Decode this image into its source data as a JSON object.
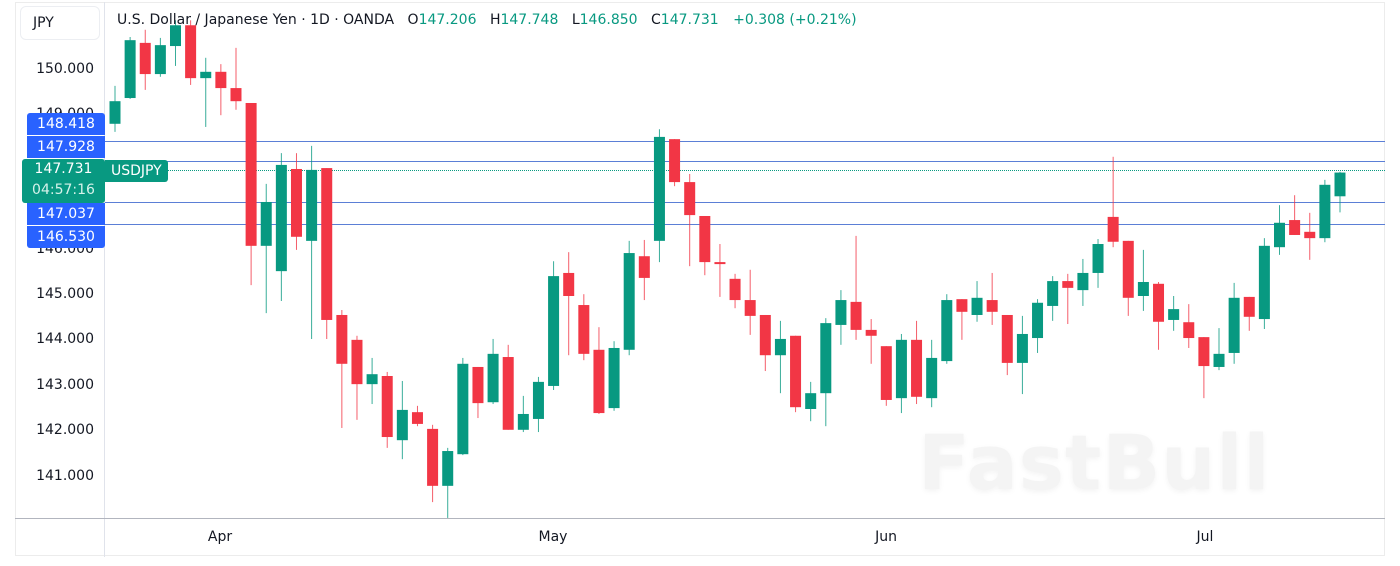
{
  "header": {
    "currency": "JPY",
    "title": "U.S. Dollar / Japanese Yen · 1D · OANDA",
    "ohlc": {
      "o_label": "O",
      "o": "147.206",
      "h_label": "H",
      "h": "147.748",
      "l_label": "L",
      "l": "146.850",
      "c_label": "C",
      "c": "147.731",
      "change": "+0.308 (+0.21%)"
    }
  },
  "price_axis": {
    "ticks": [
      "150.000",
      "149.000",
      "146.000",
      "145.000",
      "144.000",
      "143.000",
      "142.000",
      "141.000"
    ],
    "levels": [
      "148.418",
      "147.928",
      "147.037",
      "146.530"
    ],
    "current_price": "147.731",
    "countdown": "04:57:16",
    "symbol": "USDJPY"
  },
  "time_axis": {
    "labels": [
      "Apr",
      "May",
      "Jun",
      "Jul"
    ]
  },
  "watermark": "FastBull",
  "colors": {
    "up": "#089981",
    "down": "#f23645",
    "level_line": "#5b7fd6",
    "level_label": "#2962ff",
    "current": "#089981"
  },
  "chart_data": {
    "type": "candlestick",
    "title": "U.S. Dollar / Japanese Yen · 1D · OANDA",
    "symbol": "USDJPY",
    "xlabel": "",
    "ylabel": "JPY",
    "ylim": [
      140.1,
      151.1
    ],
    "grid": false,
    "x_tick_labels": [
      "Apr",
      "May",
      "Jun",
      "Jul"
    ],
    "y_tick_labels": [
      "141.000",
      "142.000",
      "143.000",
      "144.000",
      "145.000",
      "146.000",
      "149.000",
      "150.000"
    ],
    "horizontal_levels": [
      148.418,
      147.928,
      147.037,
      146.53
    ],
    "last_price": 147.731,
    "candles": [
      [
        148.81,
        149.65,
        148.63,
        149.31
      ],
      [
        149.38,
        150.73,
        149.36,
        150.66
      ],
      [
        150.6,
        150.89,
        149.56,
        149.91
      ],
      [
        149.91,
        150.71,
        149.85,
        150.55
      ],
      [
        150.53,
        151.1,
        150.09,
        150.99
      ],
      [
        150.99,
        151.1,
        149.67,
        149.82
      ],
      [
        149.82,
        150.27,
        148.74,
        149.96
      ],
      [
        149.96,
        150.13,
        149.0,
        149.6
      ],
      [
        149.6,
        150.49,
        149.12,
        149.31
      ],
      [
        149.27,
        149.27,
        145.24,
        146.11
      ],
      [
        146.11,
        147.48,
        144.62,
        147.08
      ],
      [
        145.55,
        148.16,
        144.89,
        147.9
      ],
      [
        147.81,
        148.16,
        146.02,
        146.31
      ],
      [
        146.22,
        148.32,
        144.05,
        147.79
      ],
      [
        147.83,
        147.83,
        144.05,
        144.47
      ],
      [
        144.58,
        144.69,
        142.08,
        143.5
      ],
      [
        144.03,
        144.12,
        142.26,
        143.05
      ],
      [
        143.05,
        143.63,
        142.61,
        143.27
      ],
      [
        143.23,
        143.32,
        141.64,
        141.88
      ],
      [
        141.81,
        143.12,
        141.39,
        142.48
      ],
      [
        142.43,
        142.57,
        142.12,
        142.17
      ],
      [
        142.06,
        142.15,
        140.44,
        140.8
      ],
      [
        140.8,
        141.64,
        140.09,
        141.57
      ],
      [
        141.5,
        143.63,
        141.48,
        143.5
      ],
      [
        143.43,
        143.43,
        142.3,
        142.63
      ],
      [
        142.65,
        144.05,
        142.61,
        143.72
      ],
      [
        143.65,
        143.92,
        142.04,
        142.04
      ],
      [
        142.04,
        142.79,
        141.99,
        142.39
      ],
      [
        142.28,
        143.21,
        141.99,
        143.1
      ],
      [
        143.01,
        145.77,
        142.92,
        145.44
      ],
      [
        145.51,
        145.97,
        143.69,
        145.0
      ],
      [
        144.8,
        145.04,
        143.58,
        143.72
      ],
      [
        143.81,
        144.31,
        142.39,
        142.41
      ],
      [
        142.52,
        144.0,
        142.46,
        143.85
      ],
      [
        143.81,
        146.22,
        143.69,
        145.95
      ],
      [
        145.88,
        146.24,
        144.91,
        145.4
      ],
      [
        146.22,
        148.69,
        145.75,
        148.52
      ],
      [
        148.47,
        148.47,
        147.43,
        147.52
      ],
      [
        147.52,
        147.7,
        145.66,
        146.79
      ],
      [
        146.77,
        146.77,
        145.46,
        145.75
      ],
      [
        145.75,
        146.15,
        144.98,
        145.71
      ],
      [
        145.38,
        145.49,
        144.73,
        144.91
      ],
      [
        144.91,
        145.58,
        144.14,
        144.56
      ],
      [
        144.58,
        144.58,
        143.34,
        143.69
      ],
      [
        143.69,
        144.45,
        142.85,
        144.05
      ],
      [
        144.12,
        144.12,
        142.43,
        142.54
      ],
      [
        142.5,
        143.1,
        142.23,
        142.85
      ],
      [
        142.85,
        144.51,
        142.12,
        144.4
      ],
      [
        144.36,
        145.13,
        143.92,
        144.91
      ],
      [
        144.87,
        146.33,
        144.03,
        144.25
      ],
      [
        144.25,
        144.49,
        143.5,
        144.12
      ],
      [
        143.89,
        143.89,
        142.57,
        142.7
      ],
      [
        142.74,
        144.16,
        142.41,
        144.03
      ],
      [
        144.03,
        144.45,
        142.61,
        142.77
      ],
      [
        142.74,
        144.03,
        142.54,
        143.63
      ],
      [
        143.56,
        145.04,
        143.5,
        144.91
      ],
      [
        144.93,
        144.93,
        144.03,
        144.65
      ],
      [
        144.58,
        145.33,
        144.43,
        144.96
      ],
      [
        144.91,
        145.51,
        144.36,
        144.65
      ],
      [
        144.58,
        144.58,
        143.25,
        143.52
      ],
      [
        143.52,
        144.56,
        142.83,
        144.16
      ],
      [
        144.07,
        144.93,
        143.74,
        144.85
      ],
      [
        144.78,
        145.44,
        144.45,
        145.33
      ],
      [
        145.33,
        145.49,
        144.38,
        145.18
      ],
      [
        145.13,
        145.82,
        144.78,
        145.51
      ],
      [
        145.51,
        146.26,
        145.18,
        146.15
      ],
      [
        146.75,
        148.08,
        146.08,
        146.2
      ],
      [
        146.22,
        146.22,
        144.56,
        144.96
      ],
      [
        145.0,
        146.02,
        144.67,
        145.31
      ],
      [
        145.27,
        145.31,
        143.81,
        144.43
      ],
      [
        144.47,
        145.0,
        144.23,
        144.71
      ],
      [
        144.42,
        144.82,
        143.85,
        144.07
      ],
      [
        144.09,
        144.09,
        142.74,
        143.45
      ],
      [
        143.43,
        144.29,
        143.36,
        143.72
      ],
      [
        143.74,
        145.29,
        143.5,
        144.96
      ],
      [
        144.98,
        144.98,
        144.23,
        144.54
      ],
      [
        144.49,
        146.28,
        144.27,
        146.11
      ],
      [
        146.08,
        147.01,
        145.91,
        146.62
      ],
      [
        146.68,
        147.23,
        146.35,
        146.35
      ],
      [
        146.42,
        146.84,
        145.8,
        146.28
      ],
      [
        146.28,
        147.57,
        146.19,
        147.46
      ],
      [
        147.206,
        147.748,
        146.85,
        147.731
      ]
    ],
    "candle_format": [
      "open",
      "high",
      "low",
      "close"
    ]
  }
}
